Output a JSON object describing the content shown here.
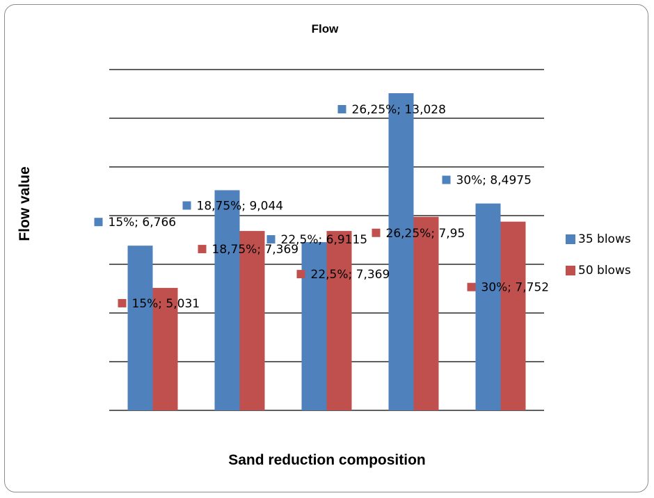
{
  "chart_data": {
    "type": "bar",
    "title": "Flow",
    "xlabel": "Sand reduction composition",
    "ylabel": "Flow value",
    "categories": [
      "15%",
      "18,75%",
      "22,5%",
      "26,25%",
      "30%"
    ],
    "ylim": [
      0,
      14
    ],
    "grid": true,
    "legend": "right",
    "series": [
      {
        "name": "35 blows",
        "color": "#4f81bd",
        "values": [
          6.766,
          9.044,
          6.9115,
          13.028,
          8.4975
        ],
        "labels": [
          "15%; 6,766",
          "18,75%; 9,044",
          "22,5%; 6,9115",
          "26,25%; 13,028",
          "30%; 8,4975"
        ]
      },
      {
        "name": "50 blows",
        "color": "#c0504d",
        "values": [
          5.031,
          7.369,
          7.369,
          7.95,
          7.752
        ],
        "labels": [
          "15%; 5,031",
          "18,75%; 7,369",
          "22,5%; 7,369",
          "26,25%; 7,95",
          "30%; 7,752"
        ]
      }
    ]
  }
}
